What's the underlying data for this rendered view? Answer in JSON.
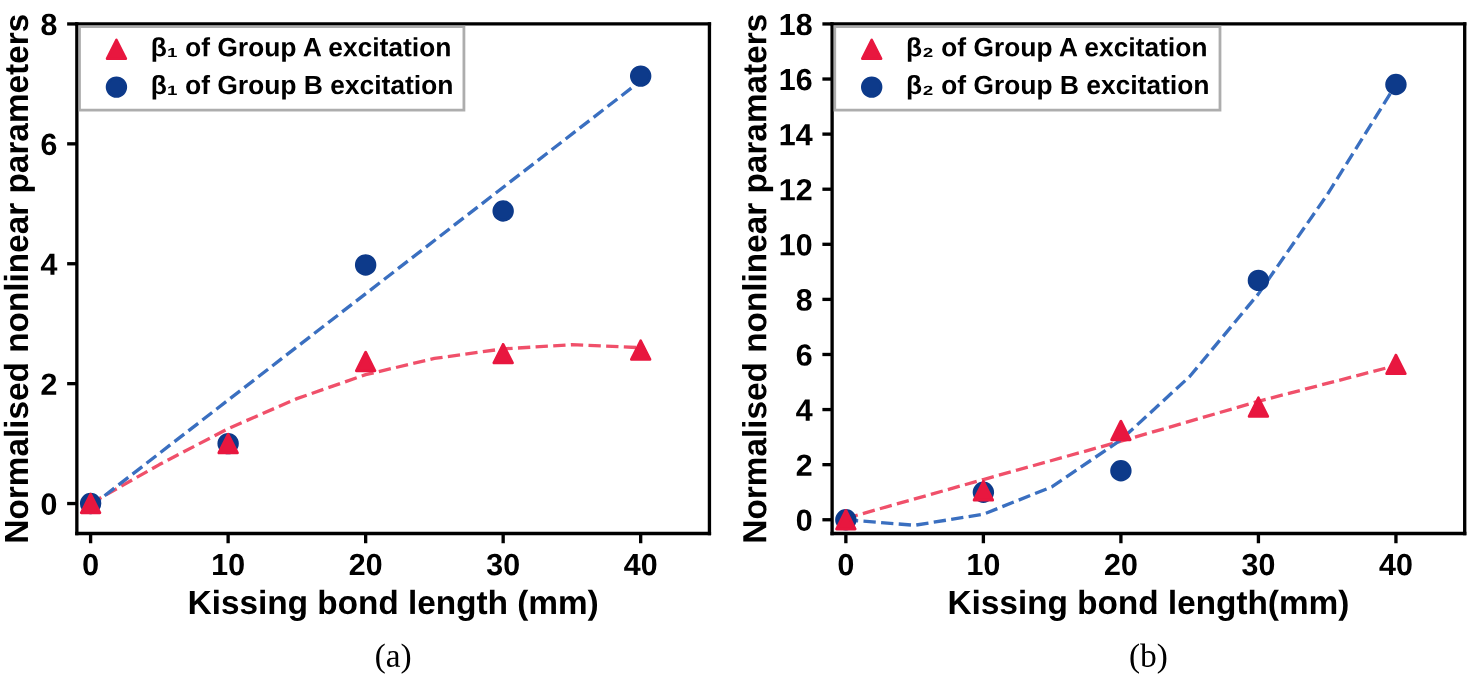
{
  "chart_data": [
    {
      "type": "scatter",
      "xlabel": "Kissing bond length (mm)",
      "ylabel": "Normalised nonlinear parameters",
      "annotations": [
        "(a)"
      ],
      "xlim": [
        -1,
        45
      ],
      "ylim": [
        -0.5,
        8
      ],
      "xticks": [
        0,
        10,
        20,
        30,
        40
      ],
      "yticks": [
        0,
        2,
        4,
        6,
        8
      ],
      "legend": "top left",
      "grid": false,
      "series": [
        {
          "type": "line",
          "color": "#f0506a",
          "line_style": "dashed",
          "marker": "none",
          "x": [
            0,
            5,
            10,
            15,
            20,
            25,
            30,
            35,
            40
          ],
          "values": [
            0,
            0.65,
            1.25,
            1.75,
            2.15,
            2.42,
            2.58,
            2.65,
            2.6
          ]
        },
        {
          "type": "line",
          "color": "#3a6fc0",
          "line_style": "dashed",
          "marker": "none",
          "x": [
            0,
            40
          ],
          "values": [
            -0.05,
            7.05
          ]
        },
        {
          "name": "β₁ of Group A excitation",
          "marker": "triangle",
          "color": "#e8173f",
          "x": [
            0,
            10,
            20,
            30,
            40
          ],
          "values": [
            0,
            1.0,
            2.37,
            2.5,
            2.56
          ]
        },
        {
          "name": "β₁ of Group B excitation",
          "marker": "circle",
          "color": "#0d3a8a",
          "x": [
            0,
            10,
            20,
            30,
            40
          ],
          "values": [
            0,
            1.0,
            3.98,
            4.88,
            7.13
          ]
        }
      ]
    },
    {
      "type": "scatter",
      "xlabel": "Kissing bond length(mm)",
      "ylabel": "Normalised nonlinear paramaters",
      "annotations": [
        "(b)"
      ],
      "xlim": [
        -1,
        45
      ],
      "ylim": [
        -0.5,
        18
      ],
      "xticks": [
        0,
        10,
        20,
        30,
        40
      ],
      "yticks": [
        0,
        2,
        4,
        6,
        8,
        10,
        12,
        14,
        16,
        18
      ],
      "legend": "top left",
      "grid": false,
      "series": [
        {
          "type": "line",
          "color": "#f0506a",
          "line_style": "dashed",
          "marker": "none",
          "x": [
            0,
            10,
            20,
            30,
            40
          ],
          "values": [
            0.05,
            1.46,
            2.85,
            4.3,
            5.6
          ]
        },
        {
          "type": "line",
          "color": "#3a6fc0",
          "line_style": "dashed",
          "marker": "none",
          "x": [
            0,
            5,
            10,
            15,
            20,
            25,
            30,
            35,
            40
          ],
          "values": [
            0,
            -0.2,
            0.2,
            1.2,
            2.9,
            5.2,
            8.2,
            11.8,
            15.8
          ]
        },
        {
          "name": "β₂ of Group A excitation",
          "marker": "triangle",
          "color": "#e8173f",
          "x": [
            0,
            10,
            20,
            30,
            40
          ],
          "values": [
            0,
            1.05,
            3.24,
            4.09,
            5.64
          ]
        },
        {
          "name": "β₂ of Group B excitation",
          "marker": "circle",
          "color": "#0d3a8a",
          "x": [
            0,
            10,
            20,
            30,
            40
          ],
          "values": [
            0,
            1.0,
            1.78,
            8.69,
            15.8
          ]
        }
      ]
    }
  ]
}
